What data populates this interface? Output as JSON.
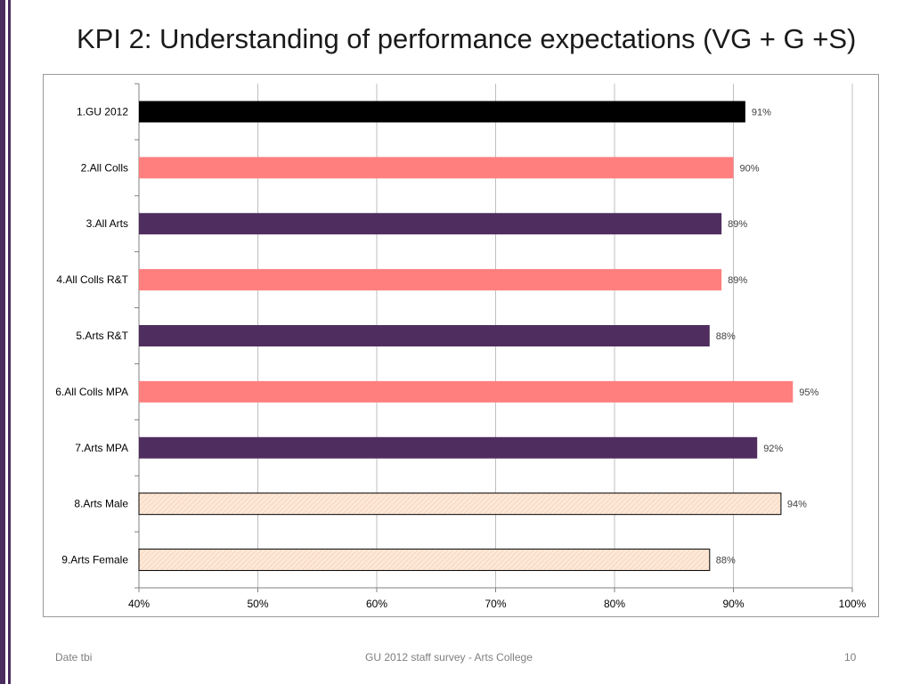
{
  "slide": {
    "title": "KPI 2: Understanding of performance expectations (VG + G +S)",
    "footer_left": "Date tbi",
    "footer_center": "GU 2012 staff survey -  Arts College",
    "page_number": "10"
  },
  "colors": {
    "black": "#000000",
    "pink": "#ff7f7f",
    "purple": "#4f2d5f",
    "peach": "#fde9d9",
    "accent_bar": "#4a2c5e",
    "grid": "#bfbfbf"
  },
  "chart_data": {
    "type": "bar",
    "orientation": "horizontal",
    "title": "",
    "xlabel": "",
    "ylabel": "",
    "xlim": [
      40,
      100
    ],
    "x_ticks": [
      40,
      50,
      60,
      70,
      80,
      90,
      100
    ],
    "x_tick_labels": [
      "40%",
      "50%",
      "60%",
      "70%",
      "80%",
      "90%",
      "100%"
    ],
    "grid": true,
    "legend": "none",
    "categories": [
      "1.GU 2012",
      "2.All Colls",
      "3.All Arts",
      "4.All Colls R&T",
      "5.Arts R&T",
      "6.All Colls MPA",
      "7.Arts MPA",
      "8.Arts Male",
      "9.Arts Female"
    ],
    "values": [
      91,
      90,
      89,
      89,
      88,
      95,
      92,
      94,
      88
    ],
    "data_labels": [
      "91%",
      "90%",
      "89%",
      "89%",
      "88%",
      "95%",
      "92%",
      "94%",
      "88%"
    ],
    "bar_styles": [
      "black",
      "pink",
      "purple",
      "pink",
      "purple",
      "pink",
      "purple",
      "peach-hatched",
      "peach-hatched"
    ]
  }
}
